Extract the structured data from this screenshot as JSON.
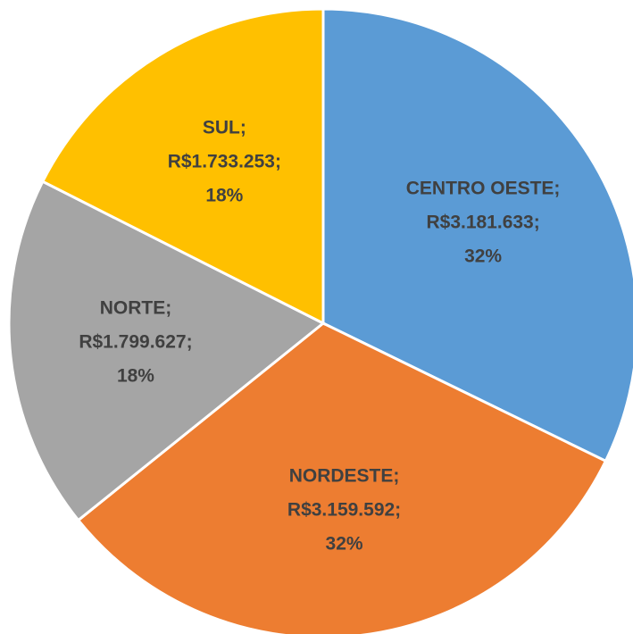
{
  "chart_data": {
    "type": "pie",
    "categories": [
      "CENTRO OESTE;",
      "NORDESTE;",
      "NORTE;",
      "SUL;"
    ],
    "values": [
      3181633,
      3159592,
      1799627,
      1733253
    ],
    "value_labels": [
      "R$3.181.633;",
      "R$3.159.592;",
      "R$1.799.627;",
      "R$1.733.253;"
    ],
    "percentages": [
      32,
      32,
      18,
      18
    ],
    "percentage_labels": [
      "32%",
      "32%",
      "18%",
      "18%"
    ],
    "colors": [
      "#5b9bd5",
      "#ed7d31",
      "#a5a5a5",
      "#ffc000"
    ]
  }
}
